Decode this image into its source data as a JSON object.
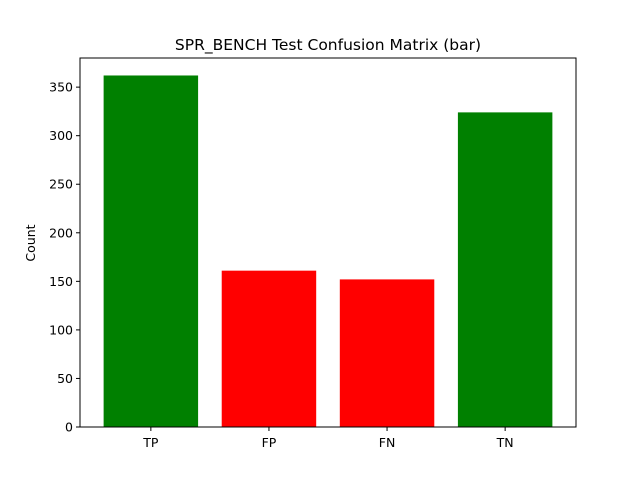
{
  "chart_data": {
    "type": "bar",
    "title": "SPR_BENCH Test Confusion Matrix (bar)",
    "xlabel": "",
    "ylabel": "Count",
    "categories": [
      "TP",
      "FP",
      "FN",
      "TN"
    ],
    "values": [
      362,
      161,
      152,
      324
    ],
    "colors": [
      "#008000",
      "#ff0000",
      "#ff0000",
      "#008000"
    ],
    "ylim": [
      0,
      380
    ],
    "yticks": [
      0,
      50,
      100,
      150,
      200,
      250,
      300,
      350
    ],
    "grid": false,
    "legend": "none"
  }
}
